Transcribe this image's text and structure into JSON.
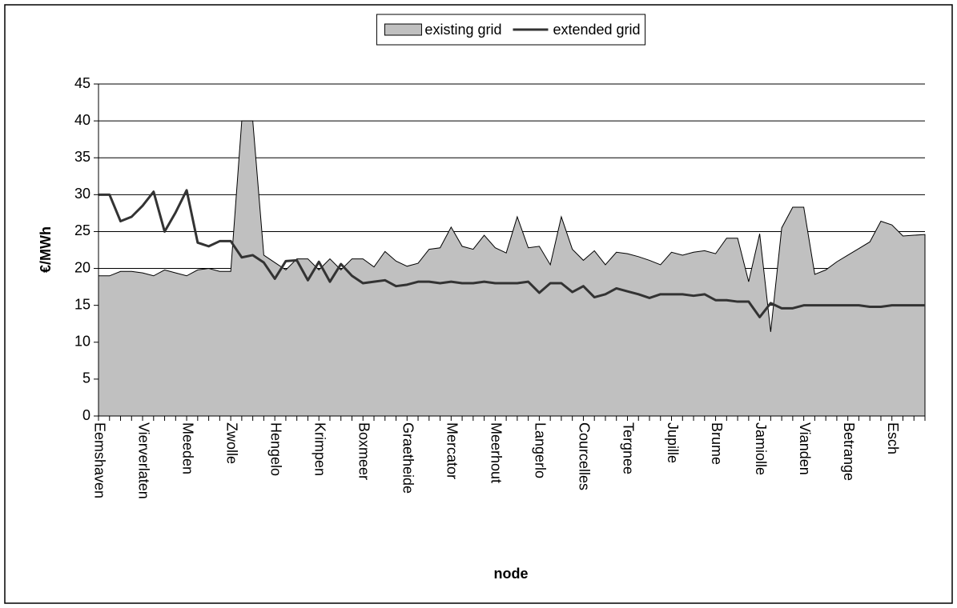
{
  "chart_data": {
    "type": "area-line",
    "xlabel": "node",
    "ylabel": "€/MWh",
    "categories": [
      "Eemshaven",
      null,
      null,
      null,
      "Vierverlaten",
      null,
      null,
      null,
      "Meeden",
      null,
      null,
      null,
      "Zwolle",
      null,
      null,
      null,
      "Hengelo",
      null,
      null,
      null,
      "Krimpen",
      null,
      null,
      null,
      "Boxmeer",
      null,
      null,
      null,
      "Graetheide",
      null,
      null,
      null,
      "Mercator",
      null,
      null,
      null,
      "Meerhout",
      null,
      null,
      null,
      "Langerlo",
      null,
      null,
      null,
      "Courcelles",
      null,
      null,
      null,
      "Tergnee",
      null,
      null,
      null,
      "Jupille",
      null,
      null,
      null,
      "Brume",
      null,
      null,
      null,
      "Jamiolle",
      null,
      null,
      null,
      "Vianden",
      null,
      null,
      null,
      "Betrange",
      null,
      null,
      null,
      "Esch",
      null,
      null,
      null
    ],
    "series": [
      {
        "name": "existing grid",
        "color": "#c0c0c0",
        "style": "area",
        "values": [
          19,
          19,
          19.6,
          19.6,
          19.4,
          19,
          19.8,
          19.4,
          19,
          19.8,
          20,
          19.6,
          19.6,
          40,
          40,
          21.8,
          20.8,
          19.8,
          21.3,
          21.3,
          19.8,
          21.3,
          19.8,
          21.3,
          21.3,
          20.2,
          22.3,
          21,
          20.3,
          20.7,
          22.6,
          22.8,
          25.6,
          23,
          22.6,
          24.5,
          22.8,
          22.1,
          27,
          22.8,
          23,
          20.5,
          27,
          22.6,
          21.1,
          22.4,
          20.5,
          22.2,
          22,
          21.6,
          21.1,
          20.5,
          22.2,
          21.8,
          22.2,
          22.4,
          22,
          24.1,
          24.1,
          18.2,
          24.7,
          11.4,
          25.5,
          28.3,
          28.3,
          19.2,
          19.8,
          20.9,
          21.8,
          22.7,
          23.6,
          26.4,
          25.9,
          24.4,
          24.5,
          24.6
        ]
      },
      {
        "name": "extended grid",
        "color": "#333333",
        "style": "line",
        "values": [
          30,
          30,
          26.4,
          27,
          28.5,
          30.4,
          25,
          27.6,
          30.6,
          23.5,
          23,
          23.7,
          23.7,
          21.5,
          21.8,
          20.8,
          18.6,
          21,
          21.1,
          18.4,
          20.9,
          18.2,
          20.6,
          19,
          18,
          18.2,
          18.4,
          17.6,
          17.8,
          18.2,
          18.2,
          18,
          18.2,
          18,
          18,
          18.2,
          18,
          18,
          18,
          18.2,
          16.7,
          18,
          18,
          16.8,
          17.6,
          16.1,
          16.5,
          17.3,
          16.9,
          16.5,
          16,
          16.5,
          16.5,
          16.5,
          16.3,
          16.5,
          15.7,
          15.7,
          15.5,
          15.5,
          13.4,
          15.3,
          14.6,
          14.6,
          15,
          15,
          15,
          15,
          15,
          15,
          14.8,
          14.8,
          15,
          15,
          15,
          15
        ]
      }
    ],
    "ylim": [
      0,
      45
    ],
    "yticks": [
      0,
      5,
      10,
      15,
      20,
      25,
      30,
      35,
      40,
      45
    ],
    "grid": true,
    "legend": "top"
  }
}
